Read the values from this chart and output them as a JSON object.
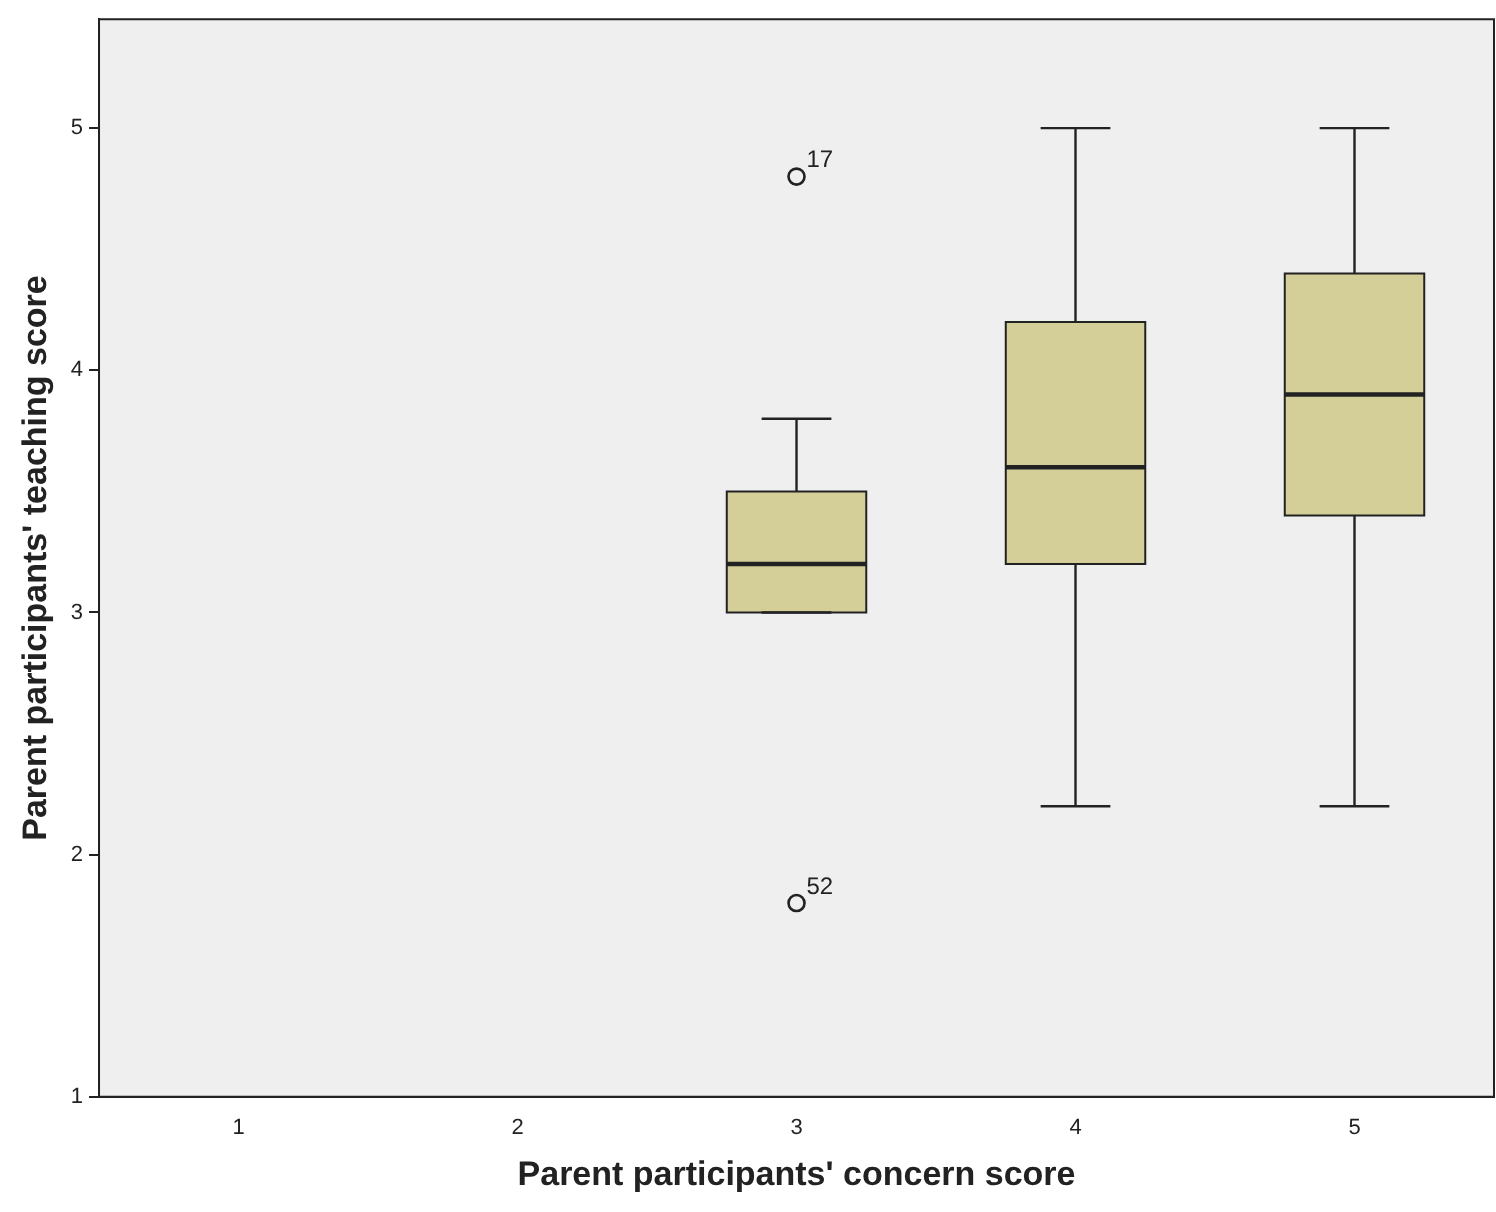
{
  "chart_data": {
    "type": "box",
    "xlabel": "Parent participants' concern score",
    "ylabel": "Parent participants' teaching score",
    "categories": [
      "1",
      "2",
      "3",
      "4",
      "5"
    ],
    "boxes": [
      null,
      null,
      {
        "low": 3.0,
        "q1": 3.0,
        "median": 3.2,
        "q3": 3.5,
        "high": 3.8,
        "outliers": [
          4.8,
          1.8
        ]
      },
      {
        "low": 2.2,
        "q1": 3.2,
        "median": 3.6,
        "q3": 4.2,
        "high": 5.0
      },
      {
        "low": 2.2,
        "q1": 3.4,
        "median": 3.9,
        "q3": 4.4,
        "high": 5.0
      }
    ],
    "color": "#d4cf99",
    "ylim": [
      1,
      5.45
    ],
    "yticks": [
      1,
      2,
      3,
      4,
      5
    ],
    "grid": false,
    "legend": false,
    "annotations": [
      "17",
      "52"
    ]
  }
}
